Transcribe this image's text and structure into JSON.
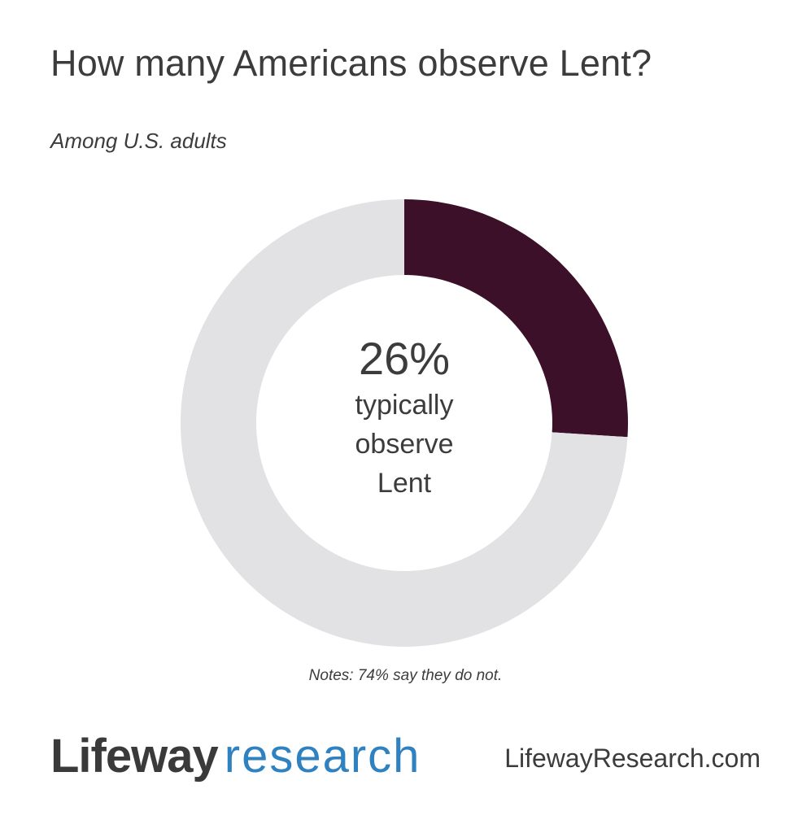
{
  "header": {
    "title": "How many Americans observe Lent?",
    "subtitle": "Among U.S. adults"
  },
  "center": {
    "value": "26%",
    "caption": "typically observe Lent"
  },
  "note": "Notes: 74% say they do not.",
  "footer": {
    "logo_part1": "Lifeway",
    "logo_part2": "research",
    "site": "LifewayResearch.com"
  },
  "chart_data": {
    "type": "pie",
    "categories": [
      "typically observe Lent",
      "say they do not"
    ],
    "values": [
      26,
      74
    ],
    "colors": [
      "#3b1028",
      "#e2e2e4"
    ],
    "unit": "%"
  }
}
